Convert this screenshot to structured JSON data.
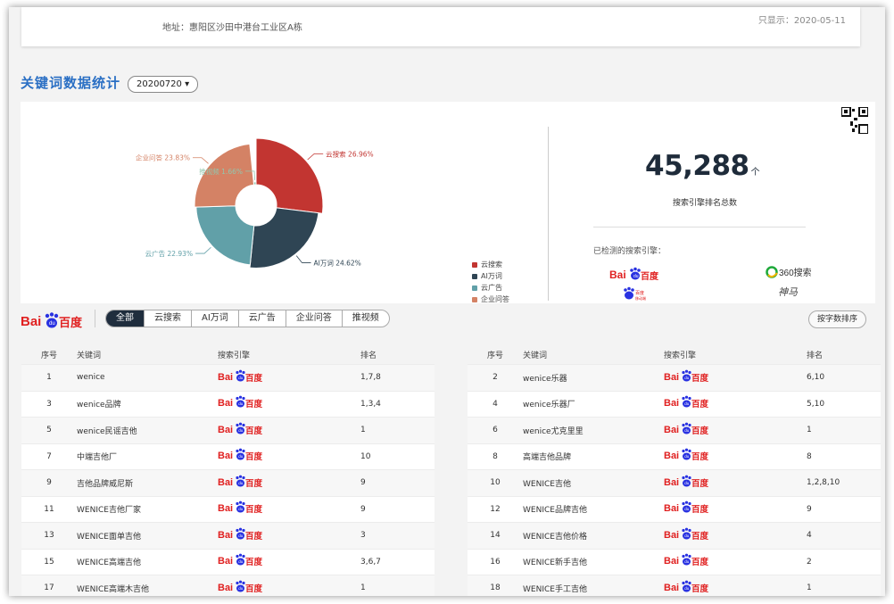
{
  "header": {
    "address": "地址：惠阳区沙田中港台工业区A栋",
    "top_right": "只显示：2020-05-11"
  },
  "section": {
    "title": "关键词数据统计",
    "date": "20200720",
    "date_arrow": "▾"
  },
  "pie": {
    "slices": [
      {
        "name": "云搜索",
        "percent": 26.96,
        "label": "云搜索 26.96%",
        "color": "#c23531"
      },
      {
        "name": "AI万词",
        "percent": 24.62,
        "label": "AI万词 24.62%",
        "color": "#2f4554"
      },
      {
        "name": "云广告",
        "percent": 22.93,
        "label": "云广告 22.93%",
        "color": "#61a0a8"
      },
      {
        "name": "企业问答",
        "percent": 23.83,
        "label": "企业问答 23.83%",
        "color": "#d48265"
      },
      {
        "name": "推视频",
        "percent": 1.66,
        "label": "推视频 1.66%",
        "color": "#91c7ae"
      }
    ],
    "legend": [
      "云搜索",
      "AI万词",
      "云广告",
      "企业问答"
    ]
  },
  "stats": {
    "total": "45,288",
    "unit": "个",
    "caption": "搜索引擎排名总数",
    "detected_label": "已检测的搜索引擎：",
    "engines": [
      "百度",
      "360搜索",
      "百度移动端",
      "神马"
    ],
    "so360_text": "360搜索",
    "shenma_text": "神马"
  },
  "filter": {
    "brand": "百度",
    "tabs": [
      "全部",
      "云搜索",
      "AI万词",
      "云广告",
      "企业问答",
      "推视频"
    ],
    "sort_label": "按字数排序"
  },
  "table": {
    "headers": [
      "序号",
      "关键词",
      "搜索引擎",
      "排名"
    ],
    "left": [
      {
        "no": "1",
        "kw": "wenice",
        "engine": "百度",
        "rank": "1,7,8"
      },
      {
        "no": "3",
        "kw": "wenice品牌",
        "engine": "百度",
        "rank": "1,3,4"
      },
      {
        "no": "5",
        "kw": "wenice民谣吉他",
        "engine": "百度",
        "rank": "1"
      },
      {
        "no": "7",
        "kw": "中端吉他厂",
        "engine": "百度",
        "rank": "10"
      },
      {
        "no": "9",
        "kw": "吉他品牌威尼斯",
        "engine": "百度",
        "rank": "9"
      },
      {
        "no": "11",
        "kw": "WENICE吉他厂家",
        "engine": "百度",
        "rank": "9"
      },
      {
        "no": "13",
        "kw": "WENICE面单吉他",
        "engine": "百度",
        "rank": "3"
      },
      {
        "no": "15",
        "kw": "WENICE高端吉他",
        "engine": "百度",
        "rank": "3,6,7"
      },
      {
        "no": "17",
        "kw": "WENICE高端木吉他",
        "engine": "百度",
        "rank": "1"
      }
    ],
    "right": [
      {
        "no": "2",
        "kw": "wenice乐器",
        "engine": "百度",
        "rank": "6,10"
      },
      {
        "no": "4",
        "kw": "wenice乐器厂",
        "engine": "百度",
        "rank": "5,10"
      },
      {
        "no": "6",
        "kw": "wenice尤克里里",
        "engine": "百度",
        "rank": "1"
      },
      {
        "no": "8",
        "kw": "高端吉他品牌",
        "engine": "百度",
        "rank": "8"
      },
      {
        "no": "10",
        "kw": "WENICE吉他",
        "engine": "百度",
        "rank": "1,2,8,10"
      },
      {
        "no": "12",
        "kw": "WENICE品牌吉他",
        "engine": "百度",
        "rank": "9"
      },
      {
        "no": "14",
        "kw": "WENICE吉他价格",
        "engine": "百度",
        "rank": "4"
      },
      {
        "no": "16",
        "kw": "WENICE新手吉他",
        "engine": "百度",
        "rank": "2"
      },
      {
        "no": "18",
        "kw": "WENICE手工吉他",
        "engine": "百度",
        "rank": "1"
      }
    ]
  }
}
